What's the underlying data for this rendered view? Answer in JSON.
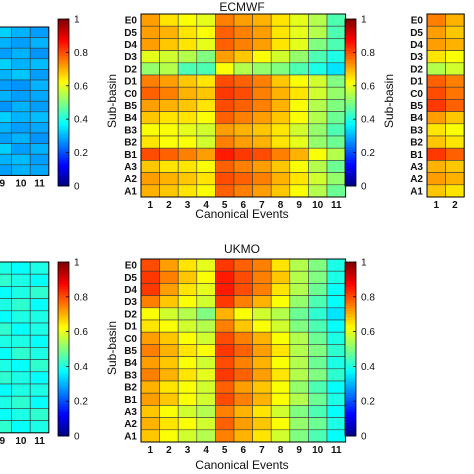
{
  "chart_data": [
    {
      "type": "heatmap",
      "title": "",
      "xlabel": "",
      "ylabel": "",
      "x_ticks": [
        "9",
        "10",
        "11"
      ],
      "values": [
        [
          0.33,
          0.3,
          0.28
        ],
        [
          0.3,
          0.28,
          0.3
        ],
        [
          0.28,
          0.3,
          0.27
        ],
        [
          0.33,
          0.3,
          0.31
        ],
        [
          0.3,
          0.32,
          0.28
        ],
        [
          0.28,
          0.27,
          0.3
        ],
        [
          0.3,
          0.28,
          0.29
        ],
        [
          0.27,
          0.3,
          0.28
        ],
        [
          0.33,
          0.3,
          0.31
        ],
        [
          0.3,
          0.28,
          0.29
        ],
        [
          0.28,
          0.3,
          0.27
        ],
        [
          0.33,
          0.28,
          0.3
        ],
        [
          0.3,
          0.31,
          0.28
        ],
        [
          0.28,
          0.3,
          0.29
        ]
      ],
      "colorbar_ticks": [
        "0",
        "0.2",
        "0.4",
        "0.6",
        "0.8",
        "1"
      ],
      "clim": [
        0,
        1
      ]
    },
    {
      "type": "heatmap",
      "title": "ECMWF",
      "xlabel": "Canonical Events",
      "ylabel": "Sub-basin",
      "x_ticks": [
        "1",
        "2",
        "3",
        "4",
        "5",
        "6",
        "7",
        "8",
        "9",
        "10",
        "11"
      ],
      "y_ticks": [
        "E0",
        "D5",
        "D4",
        "D3",
        "D2",
        "D1",
        "C0",
        "B5",
        "B4",
        "B3",
        "B2",
        "B1",
        "A3",
        "A2",
        "A1"
      ],
      "values": [
        [
          0.72,
          0.65,
          0.62,
          0.6,
          0.75,
          0.72,
          0.7,
          0.65,
          0.6,
          0.55,
          0.45
        ],
        [
          0.72,
          0.7,
          0.65,
          0.62,
          0.78,
          0.75,
          0.72,
          0.65,
          0.6,
          0.55,
          0.45
        ],
        [
          0.72,
          0.68,
          0.65,
          0.6,
          0.78,
          0.75,
          0.72,
          0.65,
          0.6,
          0.5,
          0.45
        ],
        [
          0.6,
          0.58,
          0.55,
          0.5,
          0.72,
          0.68,
          0.62,
          0.58,
          0.52,
          0.45,
          0.4
        ],
        [
          0.52,
          0.55,
          0.45,
          0.45,
          0.62,
          0.55,
          0.52,
          0.5,
          0.45,
          0.4,
          0.35
        ],
        [
          0.75,
          0.72,
          0.68,
          0.65,
          0.8,
          0.78,
          0.75,
          0.68,
          0.62,
          0.58,
          0.5
        ],
        [
          0.78,
          0.75,
          0.7,
          0.68,
          0.82,
          0.8,
          0.75,
          0.7,
          0.65,
          0.58,
          0.52
        ],
        [
          0.72,
          0.7,
          0.68,
          0.65,
          0.8,
          0.78,
          0.75,
          0.7,
          0.62,
          0.55,
          0.5
        ],
        [
          0.68,
          0.65,
          0.65,
          0.62,
          0.78,
          0.75,
          0.72,
          0.68,
          0.62,
          0.55,
          0.48
        ],
        [
          0.62,
          0.62,
          0.6,
          0.58,
          0.72,
          0.7,
          0.68,
          0.65,
          0.58,
          0.52,
          0.45
        ],
        [
          0.65,
          0.62,
          0.62,
          0.58,
          0.75,
          0.72,
          0.7,
          0.65,
          0.6,
          0.52,
          0.48
        ],
        [
          0.8,
          0.78,
          0.75,
          0.72,
          0.85,
          0.82,
          0.8,
          0.75,
          0.7,
          0.62,
          0.55
        ],
        [
          0.68,
          0.65,
          0.65,
          0.62,
          0.78,
          0.75,
          0.72,
          0.68,
          0.62,
          0.55,
          0.48
        ],
        [
          0.72,
          0.7,
          0.68,
          0.65,
          0.8,
          0.78,
          0.75,
          0.7,
          0.65,
          0.58,
          0.52
        ],
        [
          0.7,
          0.68,
          0.65,
          0.62,
          0.78,
          0.75,
          0.72,
          0.68,
          0.62,
          0.55,
          0.48
        ]
      ],
      "colorbar_ticks": [
        "0",
        "0.2",
        "0.4",
        "0.6",
        "0.8",
        "1"
      ],
      "clim": [
        0,
        1
      ]
    },
    {
      "type": "heatmap",
      "title": "",
      "xlabel": "",
      "ylabel": "Sub-basin",
      "x_ticks": [
        "1",
        "2"
      ],
      "y_ticks": [
        "E0",
        "D5",
        "D4",
        "D3",
        "D2",
        "D1",
        "C0",
        "B5",
        "B4",
        "B3",
        "B2",
        "B1",
        "A3",
        "A2",
        "A1"
      ],
      "values": [
        [
          0.75,
          0.7
        ],
        [
          0.72,
          0.68
        ],
        [
          0.72,
          0.7
        ],
        [
          0.65,
          0.62
        ],
        [
          0.55,
          0.58
        ],
        [
          0.78,
          0.75
        ],
        [
          0.8,
          0.76
        ],
        [
          0.82,
          0.78
        ],
        [
          0.72,
          0.68
        ],
        [
          0.65,
          0.62
        ],
        [
          0.68,
          0.65
        ],
        [
          0.82,
          0.78
        ],
        [
          0.7,
          0.68
        ],
        [
          0.72,
          0.7
        ],
        [
          0.68,
          0.65
        ]
      ]
    },
    {
      "type": "heatmap",
      "title": "",
      "xlabel": "",
      "ylabel": "",
      "x_ticks": [
        "9",
        "10",
        "11"
      ],
      "values": [
        [
          0.4,
          0.38,
          0.4
        ],
        [
          0.42,
          0.4,
          0.38
        ],
        [
          0.38,
          0.4,
          0.42
        ],
        [
          0.4,
          0.42,
          0.38
        ],
        [
          0.38,
          0.4,
          0.4
        ],
        [
          0.42,
          0.38,
          0.4
        ],
        [
          0.4,
          0.4,
          0.38
        ],
        [
          0.38,
          0.42,
          0.4
        ],
        [
          0.4,
          0.38,
          0.42
        ],
        [
          0.42,
          0.4,
          0.38
        ],
        [
          0.38,
          0.4,
          0.4
        ],
        [
          0.4,
          0.42,
          0.38
        ],
        [
          0.38,
          0.4,
          0.42
        ],
        [
          0.42,
          0.38,
          0.4
        ]
      ],
      "colorbar_ticks": [
        "0",
        "0.2",
        "0.4",
        "0.6",
        "0.8",
        "1"
      ],
      "clim": [
        0,
        1
      ]
    },
    {
      "type": "heatmap",
      "title": "UKMO",
      "xlabel": "Canonical Events",
      "ylabel": "Sub-basin",
      "x_ticks": [
        "1",
        "2",
        "3",
        "4",
        "5",
        "6",
        "7",
        "8",
        "9",
        "10",
        "11"
      ],
      "y_ticks": [
        "E0",
        "D5",
        "D4",
        "D3",
        "D2",
        "D1",
        "C0",
        "B5",
        "B4",
        "B3",
        "B2",
        "B1",
        "A3",
        "A2",
        "A1"
      ],
      "values": [
        [
          0.8,
          0.72,
          0.65,
          0.6,
          0.82,
          0.78,
          0.75,
          0.65,
          0.55,
          0.5,
          0.4
        ],
        [
          0.82,
          0.75,
          0.68,
          0.62,
          0.85,
          0.8,
          0.75,
          0.68,
          0.55,
          0.5,
          0.4
        ],
        [
          0.82,
          0.72,
          0.65,
          0.6,
          0.85,
          0.8,
          0.75,
          0.65,
          0.55,
          0.48,
          0.38
        ],
        [
          0.75,
          0.68,
          0.62,
          0.58,
          0.82,
          0.75,
          0.7,
          0.62,
          0.52,
          0.45,
          0.38
        ],
        [
          0.62,
          0.58,
          0.55,
          0.5,
          0.7,
          0.62,
          0.58,
          0.55,
          0.48,
          0.42,
          0.35
        ],
        [
          0.65,
          0.62,
          0.58,
          0.55,
          0.75,
          0.68,
          0.62,
          0.58,
          0.5,
          0.45,
          0.38
        ],
        [
          0.72,
          0.68,
          0.62,
          0.58,
          0.8,
          0.75,
          0.7,
          0.62,
          0.55,
          0.48,
          0.4
        ],
        [
          0.75,
          0.7,
          0.65,
          0.62,
          0.82,
          0.78,
          0.72,
          0.65,
          0.55,
          0.5,
          0.42
        ],
        [
          0.72,
          0.68,
          0.62,
          0.58,
          0.8,
          0.75,
          0.7,
          0.62,
          0.55,
          0.48,
          0.4
        ],
        [
          0.75,
          0.7,
          0.65,
          0.6,
          0.82,
          0.78,
          0.72,
          0.65,
          0.55,
          0.5,
          0.42
        ],
        [
          0.7,
          0.65,
          0.62,
          0.58,
          0.78,
          0.72,
          0.68,
          0.62,
          0.52,
          0.45,
          0.38
        ],
        [
          0.72,
          0.68,
          0.62,
          0.58,
          0.8,
          0.75,
          0.7,
          0.62,
          0.55,
          0.48,
          0.4
        ],
        [
          0.68,
          0.62,
          0.58,
          0.55,
          0.75,
          0.7,
          0.65,
          0.58,
          0.5,
          0.45,
          0.38
        ],
        [
          0.7,
          0.65,
          0.62,
          0.58,
          0.78,
          0.72,
          0.68,
          0.62,
          0.52,
          0.48,
          0.4
        ],
        [
          0.68,
          0.62,
          0.58,
          0.55,
          0.75,
          0.7,
          0.65,
          0.58,
          0.5,
          0.45,
          0.38
        ]
      ],
      "colorbar_ticks": [
        "0",
        "0.2",
        "0.4",
        "0.6",
        "0.8",
        "1"
      ],
      "clim": [
        0,
        1
      ]
    }
  ]
}
